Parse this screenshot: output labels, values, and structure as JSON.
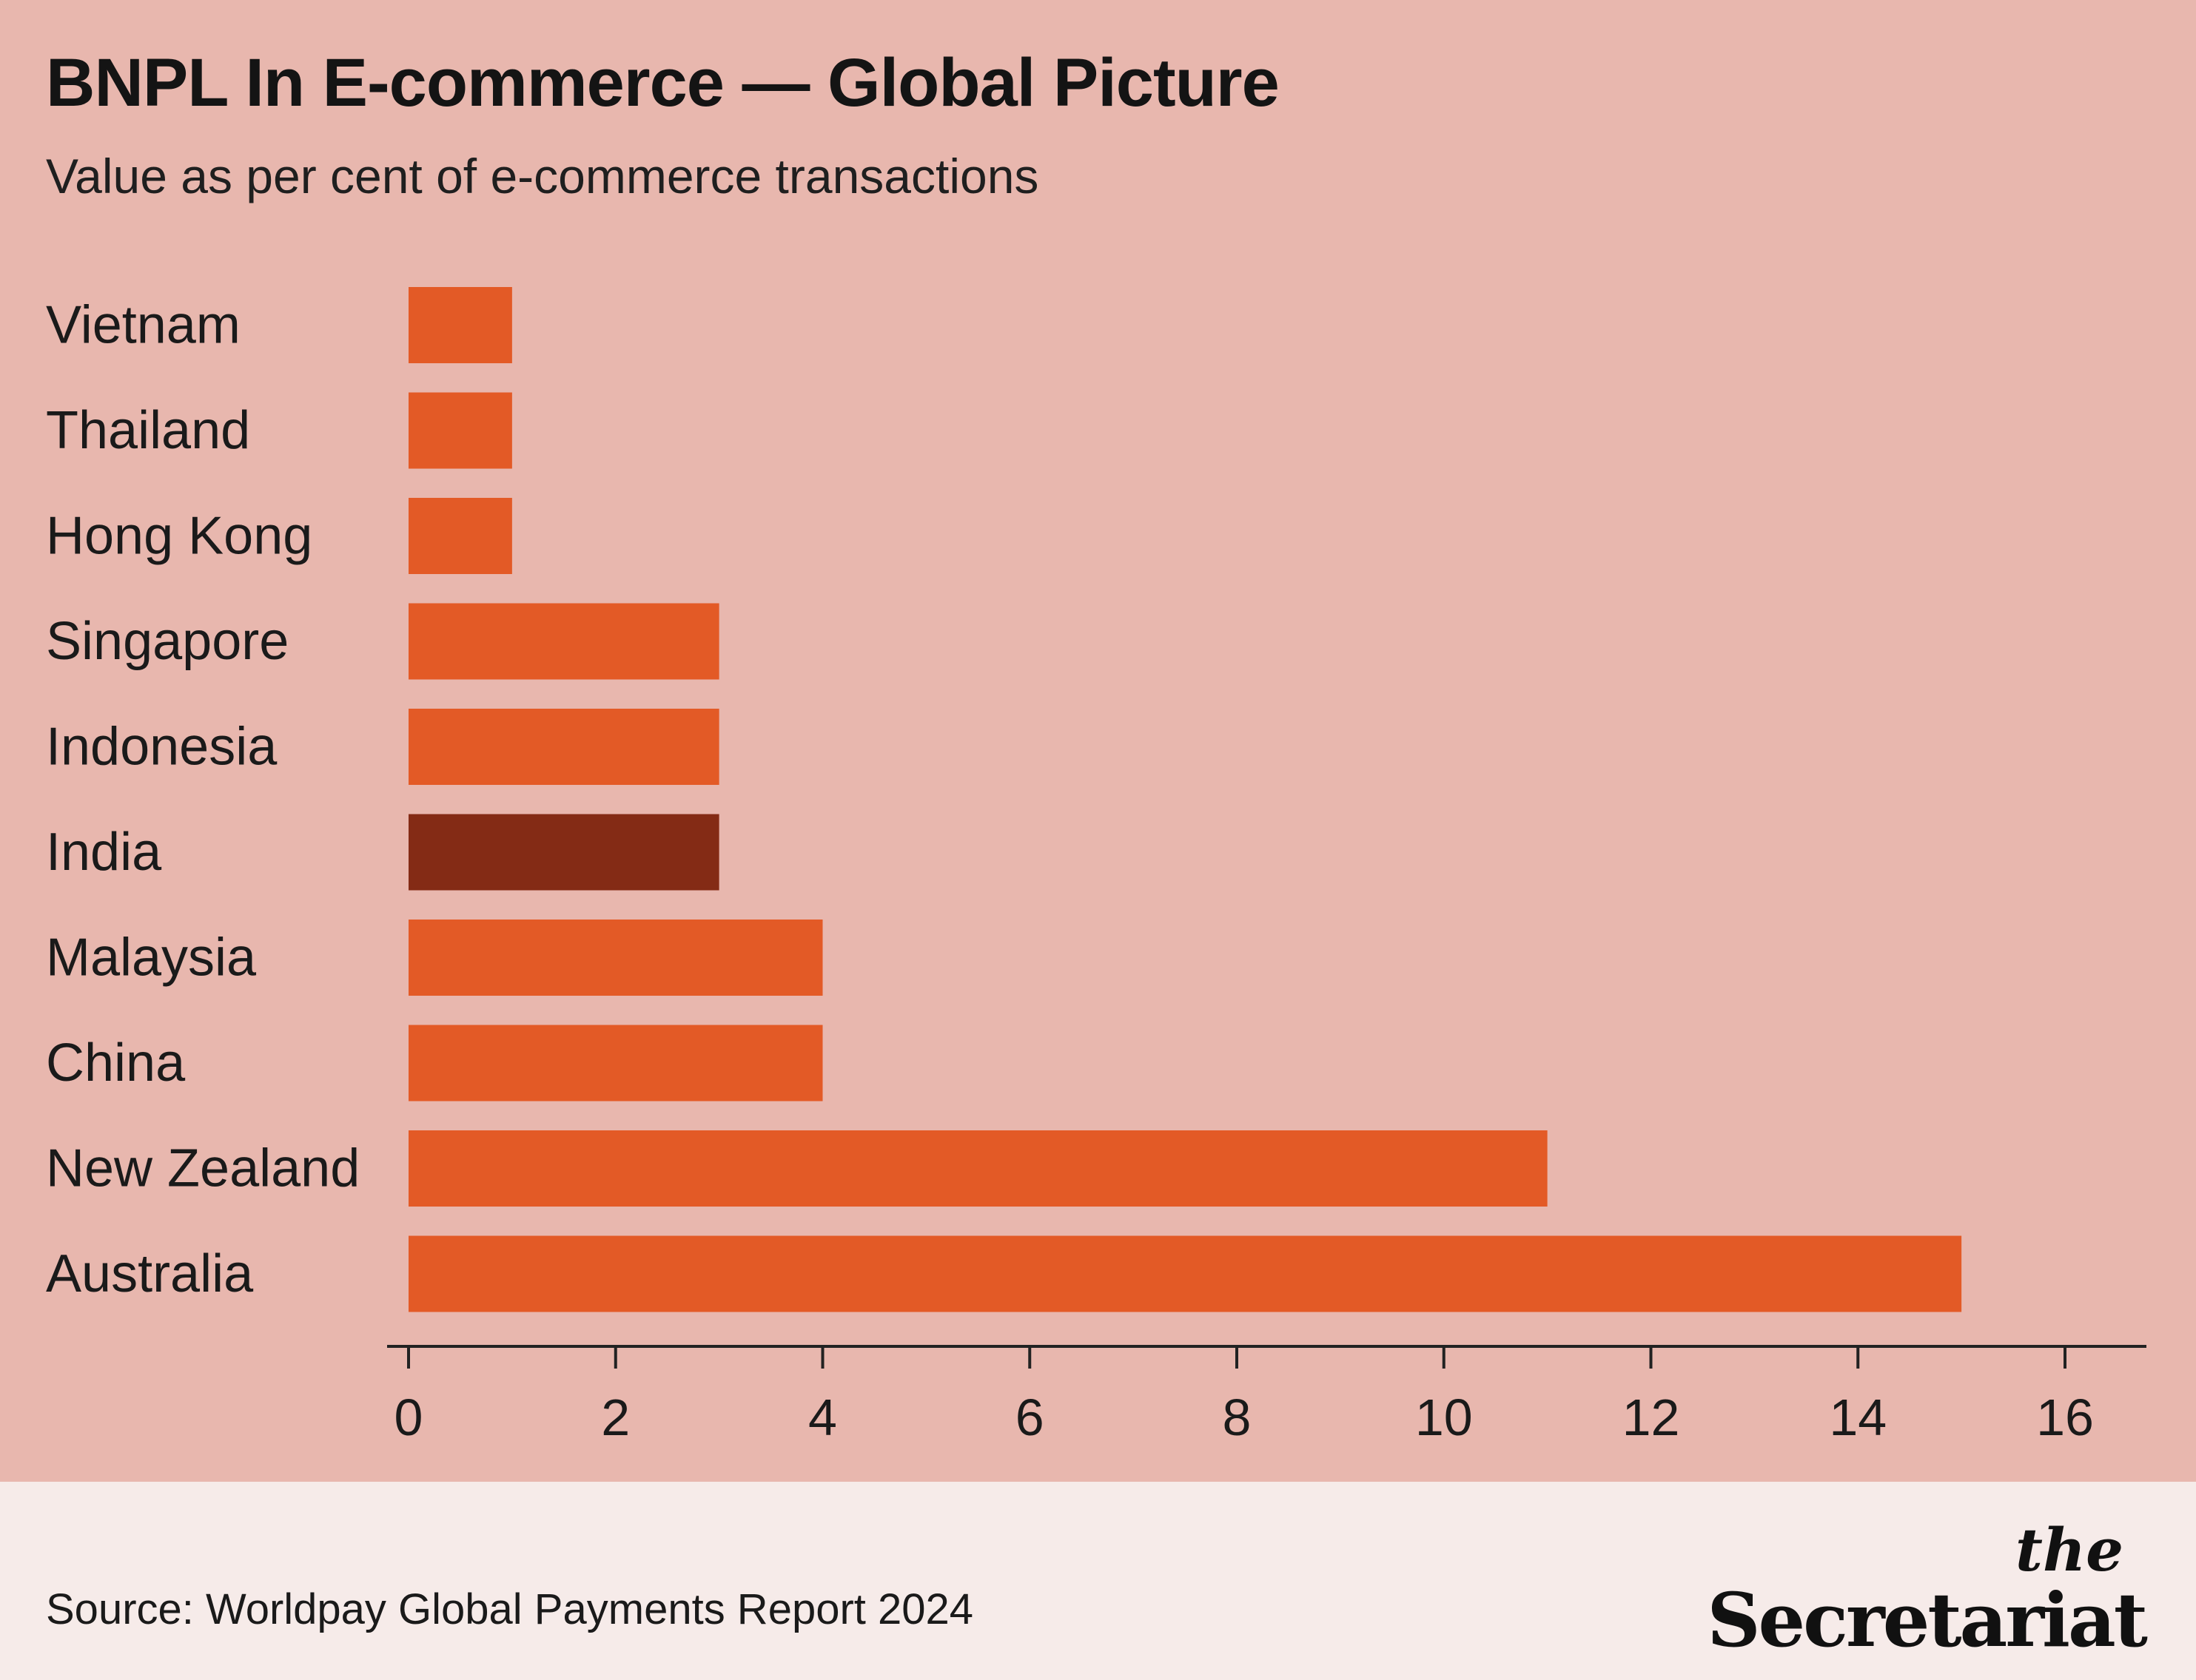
{
  "header": {
    "title": "BNPL In E-commerce — Global Picture",
    "subtitle": "Value as per cent of e-commerce transactions"
  },
  "footer": {
    "source": "Source: Worldpay Global Payments Report 2024",
    "logo_the": "the",
    "logo_name": "Secretariat"
  },
  "colors": {
    "background": "#e8b7ae",
    "footer_background": "#f6ebe9",
    "bar": "#e35a26",
    "bar_highlight": "#842b15",
    "axis": "#222222"
  },
  "chart_data": {
    "type": "bar",
    "orientation": "horizontal",
    "title": "BNPL In E-commerce — Global Picture",
    "subtitle": "Value as per cent of e-commerce transactions",
    "categories": [
      "Vietnam",
      "Thailand",
      "Hong Kong",
      "Singapore",
      "Indonesia",
      "India",
      "Malaysia",
      "China",
      "New Zealand",
      "Australia"
    ],
    "values": [
      1,
      1,
      1,
      3,
      3,
      3,
      4,
      4,
      11,
      15
    ],
    "highlight": "India",
    "xlim": [
      0,
      16
    ],
    "xticks": [
      0,
      2,
      4,
      6,
      8,
      10,
      12,
      14,
      16
    ],
    "grid": false,
    "legend": "none"
  }
}
